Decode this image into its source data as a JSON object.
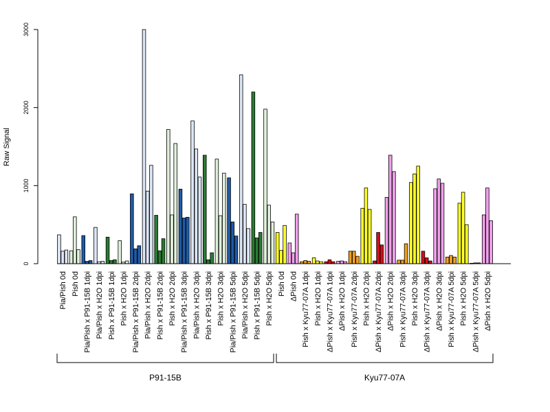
{
  "colors": {
    "light_blue": "#dce6f5",
    "dark_blue": "#1f5aa6",
    "light_green": "#e0f0dc",
    "dark_green": "#2c7a34",
    "yellow": "#ffff2a",
    "pink": "#f0a0ec",
    "orange": "#f0a020",
    "red": "#d0101c",
    "axis": "#000000"
  },
  "chart_data": {
    "type": "bar",
    "ylabel": "Raw Signal",
    "xlabel": "",
    "ylim": [
      0,
      3000
    ],
    "yticks": [
      0,
      1000,
      2000,
      3000
    ],
    "grid": false,
    "groups": [
      {
        "label": "P91-15B",
        "first_category": 0,
        "last_category": 17
      },
      {
        "label": "Kyu77-07A",
        "first_category": 18,
        "last_category": 35
      }
    ],
    "categories": [
      "Pia/Pish 0d",
      "Pish 0d",
      "Pia/Pish x P91-15B 1dpi",
      "Pia/Pish x H2O 1dpi",
      "Pish x P91-15B 1dpi",
      "Pish x H2O 1dpi",
      "Pia/Pish x P91-15B 2dpi",
      "Pia/Pish x H2O 2dpi",
      "Pish x P91-15B 2dpi",
      "Pish x H2O 2dpi",
      "Pia/Pish x P91-15B 3dpi",
      "Pia/Pish x H2O 3dpi",
      "Pish x P91-15B 3dpi",
      "Pish x H2O 3dpi",
      "Pia/Pish x P91-15B 5dpi",
      "Pia/Pish x H2O 5dpi",
      "Pish x P91-15B 5dpi",
      "Pish x H2O 5dpi",
      "Pish 0d",
      "ΔPish 0d",
      "Pish x Kyu77-07A 1dpi",
      "Pish x H2O 1dpi",
      "ΔPish x Kyu77-07A 1dpi",
      "ΔPish x H2O 1dpi",
      "Pish x Kyu77-07A 2dpi",
      "Pish x H2O 2dpi",
      "ΔPish x Kyu77-07A 2dpi",
      "ΔPish x H2O 2dpi",
      "Pish x Kyu77-07A 3dpi",
      "Pish x H2O 3dpi",
      "ΔPish x Kyu77-07A 3dpi",
      "ΔPish x H2O 3dpi",
      "Pish x Kyu77-07A 5dpi",
      "Pish x H2O 5dpi",
      "ΔPish x Kyu77-07A 5dpi",
      "ΔPish x H2O 5dpi"
    ],
    "bar_colors": [
      "light_blue",
      "light_green",
      "dark_blue",
      "light_blue",
      "dark_green",
      "light_green",
      "dark_blue",
      "light_blue",
      "dark_green",
      "light_green",
      "dark_blue",
      "light_blue",
      "dark_green",
      "light_green",
      "dark_blue",
      "light_blue",
      "dark_green",
      "light_green",
      "yellow",
      "pink",
      "orange",
      "yellow",
      "red",
      "pink",
      "orange",
      "yellow",
      "red",
      "pink",
      "orange",
      "yellow",
      "red",
      "pink",
      "orange",
      "yellow",
      "red",
      "pink"
    ],
    "values": [
      [
        370,
        160,
        175
      ],
      [
        165,
        600,
        180
      ],
      [
        360,
        30,
        40
      ],
      [
        465,
        25,
        30
      ],
      [
        340,
        40,
        50
      ],
      [
        295,
        20,
        35
      ],
      [
        895,
        190,
        230
      ],
      [
        3000,
        930,
        1260
      ],
      [
        620,
        165,
        320
      ],
      [
        1720,
        625,
        1540
      ],
      [
        955,
        585,
        595
      ],
      [
        1830,
        1470,
        1110
      ],
      [
        1390,
        50,
        140
      ],
      [
        1340,
        615,
        1160
      ],
      [
        1100,
        535,
        355
      ],
      [
        2420,
        760,
        450
      ],
      [
        2200,
        330,
        400
      ],
      [
        1980,
        750,
        535
      ],
      [
        400,
        170,
        490
      ],
      [
        265,
        140,
        635
      ],
      [
        25,
        40,
        30
      ],
      [
        75,
        35,
        25
      ],
      [
        25,
        50,
        25
      ],
      [
        30,
        35,
        25
      ],
      [
        160,
        160,
        95
      ],
      [
        710,
        970,
        695
      ],
      [
        35,
        400,
        240
      ],
      [
        850,
        1390,
        1180
      ],
      [
        45,
        45,
        255
      ],
      [
        1040,
        1150,
        1250
      ],
      [
        160,
        75,
        35
      ],
      [
        960,
        1085,
        1030
      ],
      [
        85,
        105,
        85
      ],
      [
        775,
        915,
        500
      ],
      [
        5,
        10,
        10
      ],
      [
        625,
        970,
        550
      ]
    ]
  }
}
